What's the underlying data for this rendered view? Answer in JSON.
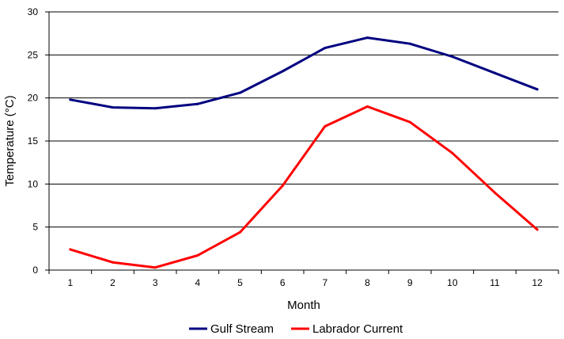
{
  "chart_data": {
    "type": "line",
    "title": "",
    "xlabel": "Month",
    "ylabel": "Temperature (°C)",
    "categories": [
      "1",
      "2",
      "3",
      "4",
      "5",
      "6",
      "7",
      "8",
      "9",
      "10",
      "11",
      "12"
    ],
    "ylim": [
      0,
      30
    ],
    "yticks": [
      "0",
      "5",
      "10",
      "15",
      "20",
      "25",
      "30"
    ],
    "grid": "horizontal",
    "legend_position": "bottom",
    "series": [
      {
        "name": "Gulf Stream",
        "color": "#000080",
        "values": [
          19.8,
          18.9,
          18.8,
          19.3,
          20.6,
          23.1,
          25.8,
          27.0,
          26.3,
          24.8,
          22.9,
          21.0
        ]
      },
      {
        "name": "Labrador Current",
        "color": "#ff0000",
        "values": [
          2.4,
          0.9,
          0.3,
          1.7,
          4.4,
          9.8,
          16.7,
          19.0,
          17.2,
          13.6,
          9.0,
          4.7
        ]
      }
    ]
  }
}
